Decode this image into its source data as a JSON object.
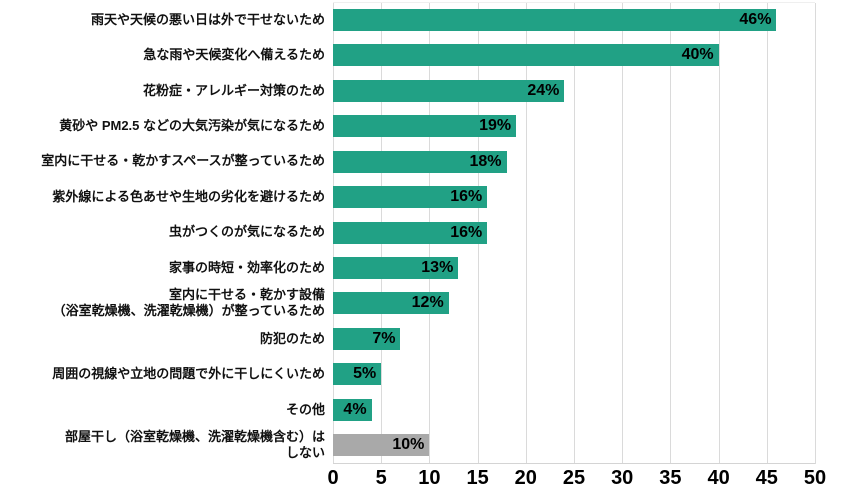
{
  "chart_data": {
    "type": "bar",
    "orientation": "horizontal",
    "title": "",
    "legend": "none",
    "grid": "vertical",
    "xlim": [
      0,
      50
    ],
    "x_ticks": [
      0,
      5,
      10,
      15,
      20,
      25,
      30,
      35,
      40,
      45,
      50
    ],
    "categories": [
      "雨天や天候の悪い日は外で干せないため",
      "急な雨や天候変化へ備えるため",
      "花粉症・アレルギー対策のため",
      "黄砂や PM2.5 などの大気汚染が気になるため",
      "室内に干せる・乾かすスペースが整っているため",
      "紫外線による色あせや生地の劣化を避けるため",
      "虫がつくのが気になるため",
      "家事の時短・効率化のため",
      "室内に干せる・乾かす設備\n（浴室乾燥機、洗濯乾燥機）が整っているため",
      "防犯のため",
      "周囲の視線や立地の問題で外に干しにくいため",
      "その他",
      "部屋干し（浴室乾燥機、洗濯乾燥機含む）は\nしない"
    ],
    "values": [
      46,
      40,
      24,
      19,
      18,
      16,
      16,
      13,
      12,
      7,
      5,
      4,
      10
    ],
    "value_labels": [
      "46%",
      "40%",
      "24%",
      "19%",
      "18%",
      "16%",
      "16%",
      "13%",
      "12%",
      "7%",
      "5%",
      "4%",
      "10%"
    ],
    "bar_colors": [
      "#21A185",
      "#21A185",
      "#21A185",
      "#21A185",
      "#21A185",
      "#21A185",
      "#21A185",
      "#21A185",
      "#21A185",
      "#21A185",
      "#21A185",
      "#21A185",
      "#A9A9A9"
    ]
  },
  "colors": {
    "bar_green": "#21A185",
    "bar_gray": "#A9A9A9",
    "gridline": "#DADADA",
    "text": "#000000"
  }
}
